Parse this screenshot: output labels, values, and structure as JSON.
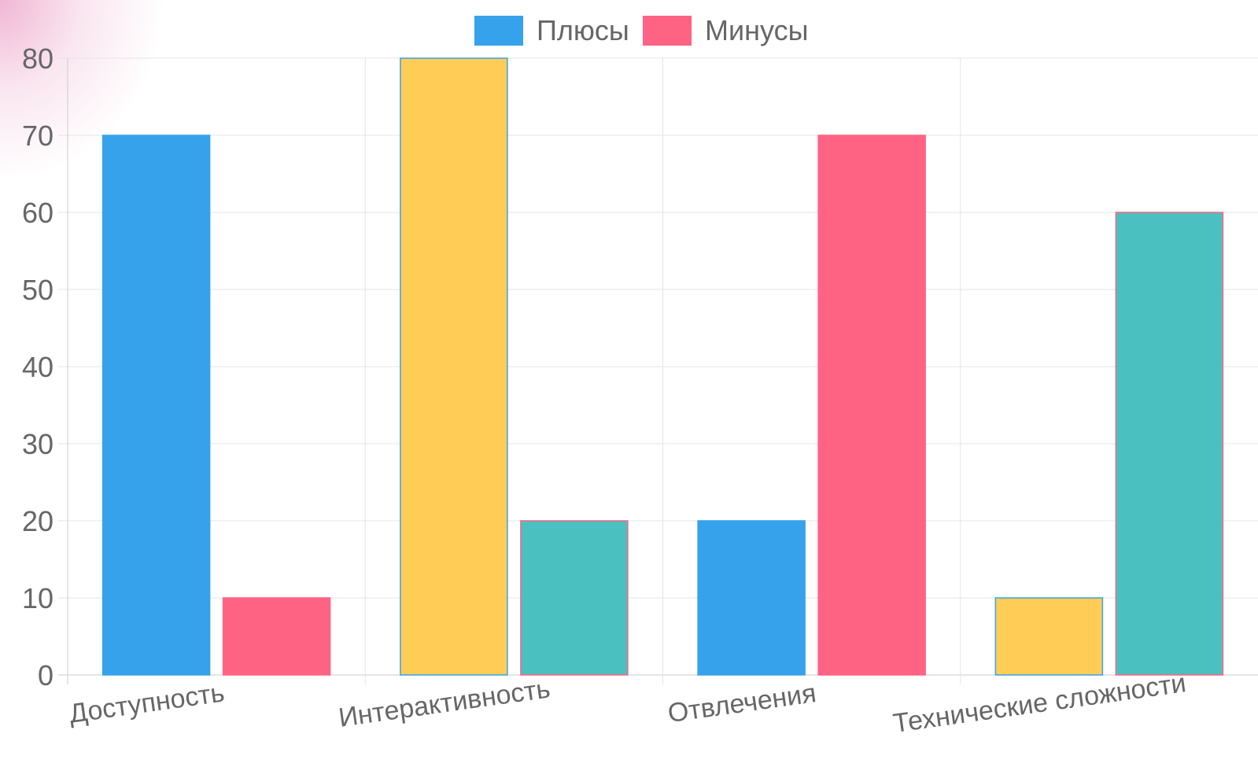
{
  "chart_data": {
    "type": "bar",
    "title": "",
    "xlabel": "",
    "ylabel": "",
    "ylim": [
      0,
      80
    ],
    "y_ticks": [
      0,
      10,
      20,
      30,
      40,
      50,
      60,
      70,
      80
    ],
    "grid": true,
    "legend_position": "top",
    "categories": [
      "Доступность",
      "Интерактивность",
      "Отвлечения",
      "Технические сложности"
    ],
    "series": [
      {
        "name": "Плюсы",
        "color": "#36a2eb",
        "values": [
          70,
          80,
          20,
          10
        ],
        "bar_colors": [
          "#36a2eb",
          "#ffcd56",
          "#36a2eb",
          "#ffcd56"
        ]
      },
      {
        "name": "Минусы",
        "color": "#ff6384",
        "values": [
          10,
          20,
          70,
          60
        ],
        "bar_colors": [
          "#ff6384",
          "#4bc0c0",
          "#ff6384",
          "#4bc0c0"
        ]
      }
    ]
  }
}
